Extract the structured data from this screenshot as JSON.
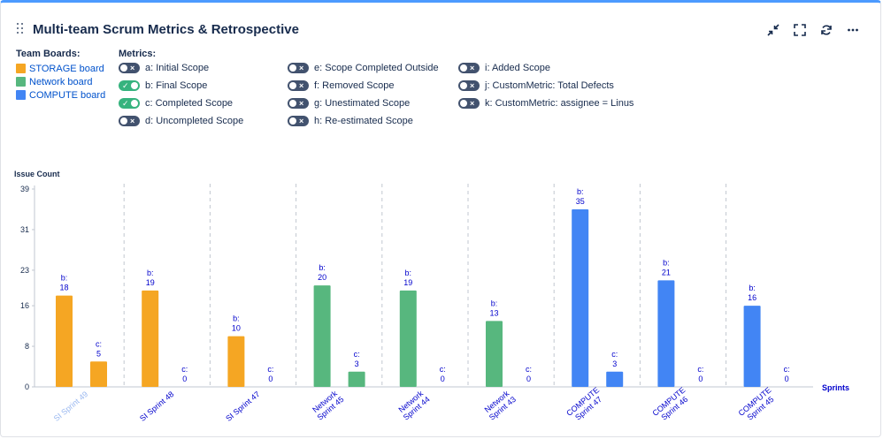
{
  "header": {
    "title": "Multi-team Scrum Metrics & Retrospective"
  },
  "actions": [
    {
      "name": "collapse-icon"
    },
    {
      "name": "fullscreen-icon"
    },
    {
      "name": "refresh-icon"
    },
    {
      "name": "more-icon"
    }
  ],
  "boards_legend": {
    "title": "Team Boards:",
    "items": [
      {
        "label": "STORAGE board",
        "color": "#f5a623"
      },
      {
        "label": "Network board",
        "color": "#57b77e"
      },
      {
        "label": "COMPUTE board",
        "color": "#4285f4"
      }
    ]
  },
  "metrics_legend": {
    "title": "Metrics:",
    "items": [
      {
        "label": "a: Initial Scope",
        "on": false
      },
      {
        "label": "b: Final Scope",
        "on": true
      },
      {
        "label": "c: Completed Scope",
        "on": true
      },
      {
        "label": "d: Uncompleted Scope",
        "on": false
      },
      {
        "label": "e: Scope Completed Outside",
        "on": false
      },
      {
        "label": "f: Removed Scope",
        "on": false
      },
      {
        "label": "g: Unestimated Scope",
        "on": false
      },
      {
        "label": "h: Re-estimated Scope",
        "on": false
      },
      {
        "label": "i: Added Scope",
        "on": false
      },
      {
        "label": "j: CustomMetric: Total Defects",
        "on": false
      },
      {
        "label": "k: CustomMetric: assignee = Linus",
        "on": false
      }
    ]
  },
  "chart_data": {
    "type": "bar",
    "title": "",
    "ylabel": "Issue Count",
    "xlabel": "Sprints",
    "ylim": [
      0,
      39
    ],
    "yticks": [
      0,
      8,
      16,
      23,
      31,
      39
    ],
    "grid": "vertical dashed separators",
    "categories": [
      {
        "line1": "SI Sprint 49",
        "line2": "",
        "board": "STORAGE board",
        "muted": true
      },
      {
        "line1": "SI Sprint 48",
        "line2": "",
        "board": "STORAGE board",
        "muted": false
      },
      {
        "line1": "SI Sprint 47",
        "line2": "",
        "board": "STORAGE board",
        "muted": false
      },
      {
        "line1": "Network",
        "line2": "Sprint 45",
        "board": "Network board",
        "muted": false
      },
      {
        "line1": "Network",
        "line2": "Sprint 44",
        "board": "Network board",
        "muted": false
      },
      {
        "line1": "Network",
        "line2": "Sprint 43",
        "board": "Network board",
        "muted": false
      },
      {
        "line1": "COMPUTE",
        "line2": "Sprint 47",
        "board": "COMPUTE board",
        "muted": false
      },
      {
        "line1": "COMPUTE",
        "line2": "Sprint 46",
        "board": "COMPUTE board",
        "muted": false
      },
      {
        "line1": "COMPUTE",
        "line2": "Sprint 45",
        "board": "COMPUTE board",
        "muted": false
      }
    ],
    "series": [
      {
        "name": "b",
        "label": "b:",
        "values": [
          18,
          19,
          10,
          20,
          19,
          13,
          35,
          21,
          16
        ]
      },
      {
        "name": "c",
        "label": "c:",
        "values": [
          5,
          0,
          0,
          3,
          0,
          0,
          3,
          0,
          0
        ]
      }
    ],
    "colors": {
      "STORAGE board": "#f5a623",
      "Network board": "#57b77e",
      "COMPUTE board": "#4285f4"
    },
    "label_color": "#0000cc",
    "axis_label_color": "#0000cc"
  }
}
